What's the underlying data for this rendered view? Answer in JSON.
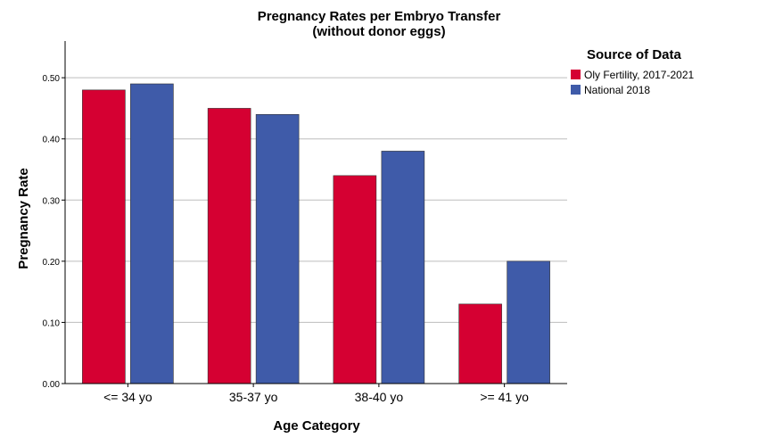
{
  "chart_data": {
    "type": "bar",
    "title": "Pregnancy Rates per Embryo Transfer",
    "subtitle": "(without donor eggs)",
    "xlabel": "Age Category",
    "ylabel": "Pregnancy Rate",
    "categories": [
      "<= 34 yo",
      "35-37 yo",
      "38-40 yo",
      ">= 41 yo"
    ],
    "series": [
      {
        "name": "Oly Fertility, 2017-2021",
        "color": "#d50032",
        "values": [
          0.48,
          0.45,
          0.34,
          0.13
        ]
      },
      {
        "name": "National 2018",
        "color": "#3f5ba9",
        "values": [
          0.49,
          0.44,
          0.38,
          0.2
        ]
      }
    ],
    "ylim": [
      0,
      0.56
    ],
    "yticks": [
      "0.00",
      "0.10",
      "0.20",
      "0.30",
      "0.40",
      "0.50"
    ],
    "grid": true,
    "legend": {
      "title": "Source of Data",
      "placement": "right"
    }
  }
}
